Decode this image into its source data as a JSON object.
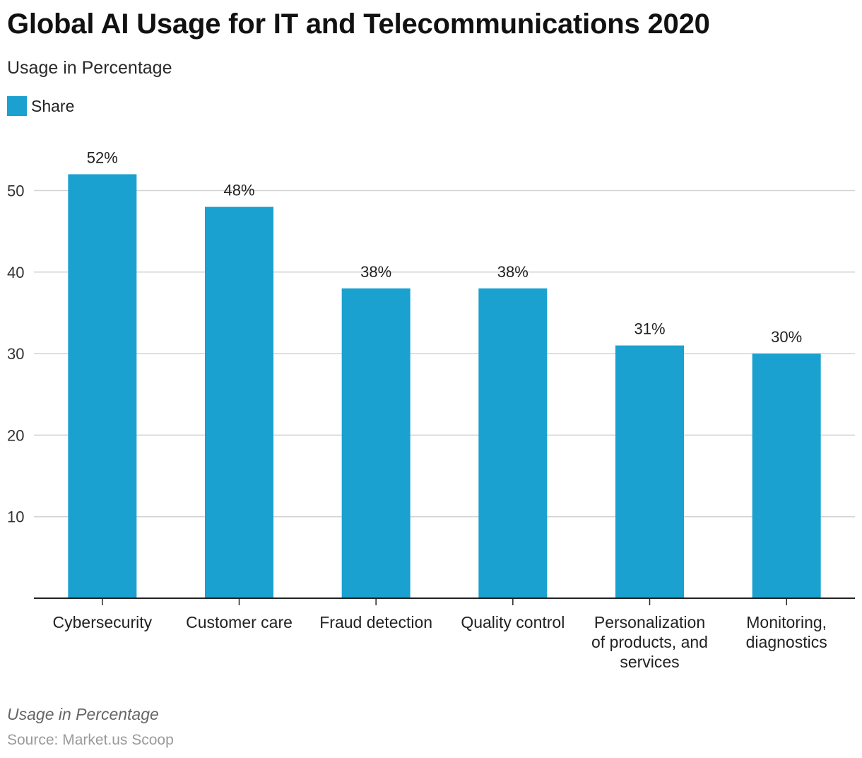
{
  "title": "Global AI Usage for IT and Telecommunications 2020",
  "subtitle": "Usage in Percentage",
  "legend": {
    "label": "Share",
    "color": "#1aa1cf"
  },
  "footnote": "Usage in Percentage",
  "source": "Source: Market.us Scoop",
  "chart_data": {
    "type": "bar",
    "title": "Global AI Usage for IT and Telecommunications 2020",
    "subtitle": "Usage in Percentage",
    "xlabel": "",
    "ylabel": "",
    "ylim": [
      0,
      55
    ],
    "yticks": [
      10,
      20,
      30,
      40,
      50
    ],
    "grid": true,
    "legend_position": "top-left",
    "categories": [
      [
        "Cybersecurity"
      ],
      [
        "Customer care"
      ],
      [
        "Fraud detection"
      ],
      [
        "Quality control"
      ],
      [
        "Personalization",
        "of products, and",
        "services"
      ],
      [
        "Monitoring,",
        "diagnostics"
      ]
    ],
    "series": [
      {
        "name": "Share",
        "color": "#1aa1cf",
        "values": [
          52,
          48,
          38,
          38,
          31,
          30
        ],
        "labels": [
          "52%",
          "48%",
          "38%",
          "38%",
          "31%",
          "30%"
        ]
      }
    ]
  }
}
